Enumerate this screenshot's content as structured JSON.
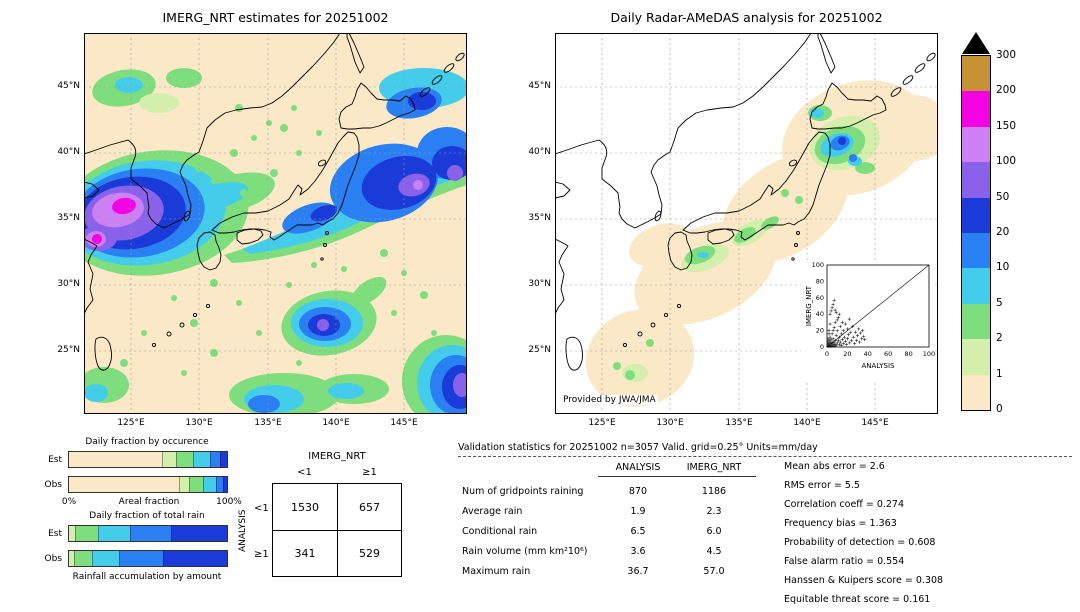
{
  "palette": {
    "c0": "#fbe8c6",
    "c1": "#d4efab",
    "c2": "#7edd7d",
    "c3": "#43cdea",
    "c4": "#2a7ff2",
    "c5": "#1b3bd8",
    "c6": "#8a62e9",
    "c7": "#cd7ff4",
    "c8": "#f303e2",
    "c9": "#c79336"
  },
  "chart_data": [
    {
      "type": "map",
      "title": "IMERG_NRT estimates for 20251002",
      "units": "mm/day",
      "lat_ticks": [
        "45°N",
        "40°N",
        "35°N",
        "30°N",
        "25°N"
      ],
      "lon_ticks": [
        "125°E",
        "130°E",
        "135°E",
        "140°E",
        "145°E"
      ]
    },
    {
      "type": "map",
      "title": "Daily Radar-AMeDAS analysis for 20251002",
      "units": "mm/day",
      "credit": "Provided by JWA/JMA",
      "lat_ticks": [
        "45°N",
        "40°N",
        "35°N",
        "30°N",
        "25°N"
      ],
      "lon_ticks": [
        "125°E",
        "130°E",
        "135°E",
        "140°E",
        "145°E"
      ]
    },
    {
      "type": "scatter",
      "xlabel": "ANALYSIS",
      "ylabel": "IMERG_NRT",
      "xlim": [
        0,
        100
      ],
      "ylim": [
        0,
        100
      ],
      "ticks": [
        "0",
        "20",
        "40",
        "60",
        "80",
        "100"
      ],
      "grid": false,
      "diagonal": true,
      "points": [
        [
          1,
          1
        ],
        [
          1,
          3
        ],
        [
          1,
          6
        ],
        [
          1,
          10
        ],
        [
          2,
          1
        ],
        [
          2,
          4
        ],
        [
          2,
          8
        ],
        [
          2,
          16
        ],
        [
          2,
          20
        ],
        [
          3,
          2
        ],
        [
          3,
          6
        ],
        [
          3,
          12
        ],
        [
          3,
          28
        ],
        [
          3,
          40
        ],
        [
          4,
          1
        ],
        [
          4,
          4
        ],
        [
          4,
          9
        ],
        [
          4,
          44
        ],
        [
          5,
          2
        ],
        [
          5,
          6
        ],
        [
          5,
          16
        ],
        [
          5,
          48
        ],
        [
          6,
          3
        ],
        [
          6,
          10
        ],
        [
          6,
          20
        ],
        [
          6,
          52
        ],
        [
          7,
          1
        ],
        [
          7,
          5
        ],
        [
          7,
          24
        ],
        [
          7,
          57
        ],
        [
          8,
          3
        ],
        [
          8,
          8
        ],
        [
          8,
          30
        ],
        [
          8,
          45
        ],
        [
          9,
          2
        ],
        [
          9,
          14
        ],
        [
          9,
          42
        ],
        [
          10,
          5
        ],
        [
          10,
          20
        ],
        [
          10,
          33
        ],
        [
          11,
          8
        ],
        [
          11,
          36
        ],
        [
          12,
          3
        ],
        [
          12,
          12
        ],
        [
          12,
          40
        ],
        [
          13,
          6
        ],
        [
          13,
          25
        ],
        [
          14,
          2
        ],
        [
          14,
          16
        ],
        [
          15,
          9
        ],
        [
          15,
          30
        ],
        [
          16,
          4
        ],
        [
          16,
          20
        ],
        [
          17,
          12
        ],
        [
          18,
          7
        ],
        [
          18,
          28
        ],
        [
          19,
          3
        ],
        [
          20,
          10
        ],
        [
          20,
          22
        ],
        [
          21,
          15
        ],
        [
          22,
          5
        ],
        [
          22,
          34
        ],
        [
          23,
          18
        ],
        [
          24,
          8
        ],
        [
          25,
          25
        ],
        [
          26,
          12
        ],
        [
          27,
          4
        ],
        [
          28,
          18
        ],
        [
          29,
          8
        ],
        [
          30,
          14
        ],
        [
          31,
          22
        ],
        [
          32,
          6
        ],
        [
          33,
          17
        ],
        [
          34,
          10
        ],
        [
          35,
          20
        ],
        [
          36,
          13
        ],
        [
          37,
          9
        ]
      ]
    },
    {
      "type": "bar",
      "title": "Daily fraction by occurence",
      "axis": {
        "left": "0%",
        "center": "Areal fraction",
        "right": "100%"
      },
      "rows": [
        {
          "label": "Est",
          "segments": [
            {
              "color": "c0",
              "pct": 0.61
            },
            {
              "color": "c1",
              "pct": 0.08
            },
            {
              "color": "c2",
              "pct": 0.11
            },
            {
              "color": "c3",
              "pct": 0.1
            },
            {
              "color": "c4",
              "pct": 0.06
            },
            {
              "color": "c5",
              "pct": 0.04
            }
          ]
        },
        {
          "label": "Obs",
          "segments": [
            {
              "color": "c0",
              "pct": 0.72
            },
            {
              "color": "c1",
              "pct": 0.06
            },
            {
              "color": "c2",
              "pct": 0.08
            },
            {
              "color": "c3",
              "pct": 0.08
            },
            {
              "color": "c4",
              "pct": 0.04
            },
            {
              "color": "c5",
              "pct": 0.02
            }
          ]
        }
      ]
    },
    {
      "type": "bar",
      "title": "Daily fraction of total rain",
      "caption": "Rainfall accumulation by amount",
      "rows": [
        {
          "label": "Est",
          "segments": [
            {
              "color": "c1",
              "pct": 0.04
            },
            {
              "color": "c2",
              "pct": 0.14
            },
            {
              "color": "c3",
              "pct": 0.2
            },
            {
              "color": "c4",
              "pct": 0.26
            },
            {
              "color": "c5",
              "pct": 0.36
            }
          ]
        },
        {
          "label": "Obs",
          "segments": [
            {
              "color": "c1",
              "pct": 0.03
            },
            {
              "color": "c2",
              "pct": 0.11
            },
            {
              "color": "c3",
              "pct": 0.17
            },
            {
              "color": "c4",
              "pct": 0.28
            },
            {
              "color": "c5",
              "pct": 0.41
            }
          ]
        }
      ]
    },
    {
      "type": "table",
      "col_group": "IMERG_NRT",
      "col_labels": [
        "<1",
        "≥1"
      ],
      "row_group": "ANALYSIS",
      "row_labels": [
        "<1",
        "≥1"
      ],
      "values": [
        [
          "1530",
          "657"
        ],
        [
          "341",
          "529"
        ]
      ]
    },
    {
      "type": "table",
      "title": "Validation statistics for 20251002  n=3057 Valid. grid=0.25° Units=mm/day",
      "col_headers": [
        "ANALYSIS",
        "IMERG_NRT"
      ],
      "rows": [
        {
          "label": "Num of gridpoints raining",
          "analysis": "870",
          "imerg": "1186"
        },
        {
          "label": "Average rain",
          "analysis": "1.9",
          "imerg": "2.3"
        },
        {
          "label": "Conditional rain",
          "analysis": "6.5",
          "imerg": "6.0"
        },
        {
          "label": "Rain volume (mm km²10⁶)",
          "analysis": "3.6",
          "imerg": "4.5"
        },
        {
          "label": "Maximum rain",
          "analysis": "36.7",
          "imerg": "57.0"
        }
      ],
      "metrics": [
        {
          "label": "Mean abs error",
          "value": "2.6"
        },
        {
          "label": "RMS error",
          "value": "5.5"
        },
        {
          "label": "Correlation coeff",
          "value": "0.274"
        },
        {
          "label": "Frequency bias",
          "value": "1.363"
        },
        {
          "label": "Probability of detection",
          "value": "0.608"
        },
        {
          "label": "False alarm ratio",
          "value": "0.554"
        },
        {
          "label": "Hanssen & Kuipers score",
          "value": "0.308"
        },
        {
          "label": "Equitable threat score",
          "value": "0.161"
        }
      ]
    },
    {
      "type": "colorbar",
      "tick_labels": [
        "300",
        "200",
        "150",
        "100",
        "50",
        "20",
        "10",
        "5",
        "2",
        "1",
        "0"
      ],
      "colors_top_to_bottom": [
        "c9",
        "c8",
        "c7",
        "c6",
        "c5",
        "c4",
        "c3",
        "c2",
        "c1",
        "c0"
      ]
    }
  ]
}
